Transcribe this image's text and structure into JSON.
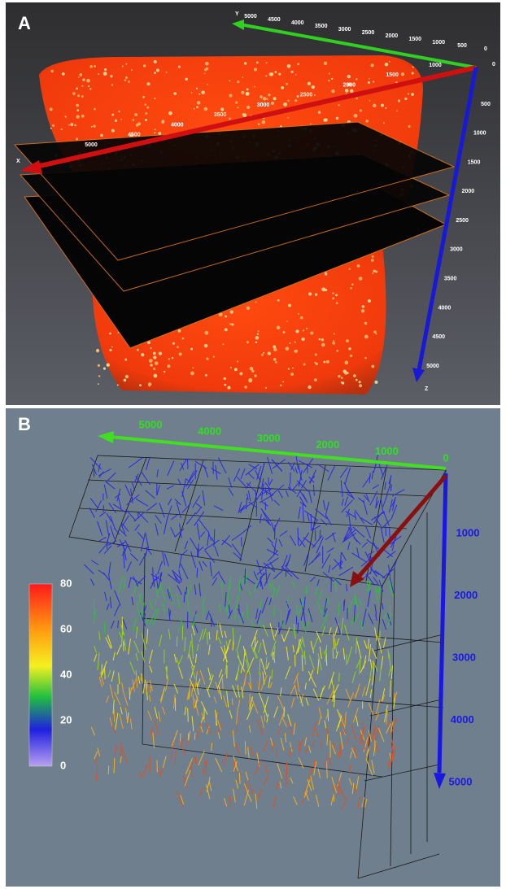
{
  "panels": [
    {
      "label": "A",
      "y_axis": {
        "name": "Y",
        "ticks": [
          "5000",
          "4500",
          "4000",
          "3500",
          "3000",
          "2500",
          "2000",
          "1500",
          "1000",
          "500",
          "0"
        ]
      },
      "x_axis": {
        "name": "X",
        "ticks": [
          "1000",
          "1500",
          "2000",
          "2500",
          "3000",
          "3500",
          "4000",
          "4500",
          "5000"
        ]
      },
      "z_axis": {
        "name": "Z",
        "ticks": [
          "500",
          "1000",
          "1500",
          "2000",
          "2500",
          "3000",
          "3500",
          "4000",
          "4500",
          "5000"
        ]
      },
      "origin": "0"
    },
    {
      "label": "B",
      "green_axis": {
        "ticks": [
          "5000",
          "4000",
          "3000",
          "2000",
          "1000",
          "0"
        ]
      },
      "blue_axis": {
        "ticks": [
          "1000",
          "2000",
          "3000",
          "4000",
          "5000"
        ]
      },
      "colorbar": {
        "ticks": [
          "80",
          "60",
          "40",
          "20",
          "0"
        ]
      }
    }
  ]
}
